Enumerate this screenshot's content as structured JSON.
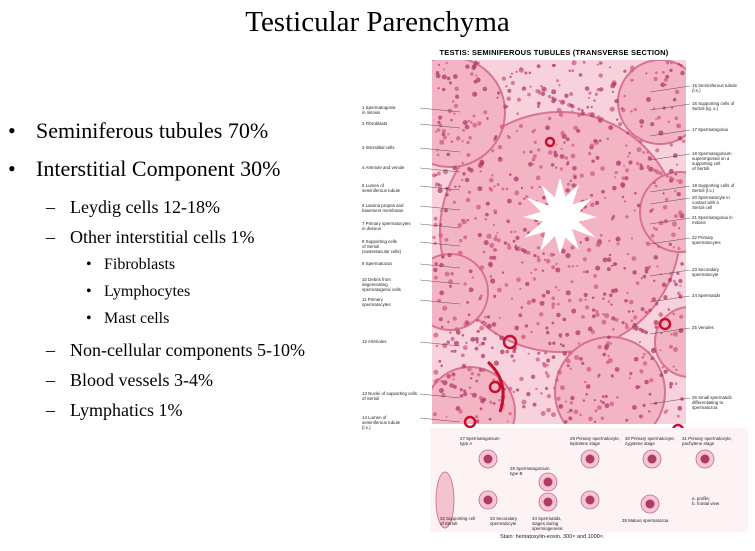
{
  "slide": {
    "title": "Testicular Parenchyma",
    "bullets": [
      {
        "level": 1,
        "marker": "•",
        "text": "Seminiferous tubules 70%"
      },
      {
        "level": 1,
        "marker": "•",
        "text": "Interstitial Component 30%"
      },
      {
        "level": 2,
        "marker": "–",
        "text": "Leydig cells 12-18%"
      },
      {
        "level": 2,
        "marker": "–",
        "text": "Other interstitial cells 1%"
      },
      {
        "level": 3,
        "marker": "•",
        "text": "Fibroblasts"
      },
      {
        "level": 3,
        "marker": "•",
        "text": "Lymphocytes"
      },
      {
        "level": 3,
        "marker": "•",
        "text": "Mast cells"
      },
      {
        "level": 2,
        "marker": "–",
        "text": "Non-cellular components 5-10%"
      },
      {
        "level": 2,
        "marker": "–",
        "text": "Blood vessels 3-4%"
      },
      {
        "level": 2,
        "marker": "–",
        "text": "Lymphatics 1%"
      }
    ]
  },
  "figure": {
    "title": "TESTIS: SEMINIFEROUS TUBULES (TRANSVERSE SECTION)",
    "stain": "Stain: hematoxylin-eosin. 300× and 1000×.",
    "colors": {
      "tissue": "#f3b4c4",
      "stroma": "#f7d2dc",
      "nuclei": "#b03a63",
      "vessel": "#c8102e",
      "lumen": "#ffffff"
    },
    "left_labels": [
      "1 Spermatogonia\nin mitosis",
      "2 Fibroblasts",
      "3 Interstitial cells",
      "4 Arteriole and venule",
      "5 Lumen of\nseminiferous tubule",
      "6 Lamina propria and\nbasement membrane",
      "7 Primary spermatocytes\nin division",
      "8 Supporting cells\nof Sertoli\n(sustentacular cells)",
      "9 Spermatozoa",
      "10 Debris from\ndegenerating\nspermatogenic cells",
      "11 Primary\nspermatocytes",
      "12 Arterioles",
      "13 Nuclei of supporting cells\nof Sertoli",
      "14 Lumen of\nseminiferous tubule\n(l.s.)"
    ],
    "right_labels": [
      "15 Seminiferous tubule\n(l.s.)",
      "16 Supporting cells of\nSertoli (tg. s.)",
      "17 Spermatogonia",
      "18 Spermatogonium\nsuperimposed on a\nsupporting cell\nof Sertoli",
      "19 Supporting cells of\nSertoli (l.s.)",
      "20 Spermatocyte in\ncontact with a\nSertoli cell",
      "21 Spermatogonia in\nmitosis",
      "22 Primary\nspermatocytes",
      "23 Secondary\nspermatocyte",
      "24 Spermatids",
      "25 Venules",
      "26 Small spermatids\ndifferentiating to\nspermatozoa"
    ],
    "inset_labels": [
      "27 Spermatogonium\ntype A",
      "28 Spermatogonium\ntype B",
      "29 Primary spermatocyte,\nleptotene stage",
      "30 Primary spermatocyte,\nzygotene stage",
      "31 Primary spermatocyte,\npachytene stage",
      "32 Supporting cell\nof Sertoli",
      "33 Secondary\nspermatocyte",
      "34 Spermatids,\nstages during\nspermiogenesis",
      "35 Mature spermatozoa",
      "a. profile;\nb. frontal view"
    ]
  }
}
